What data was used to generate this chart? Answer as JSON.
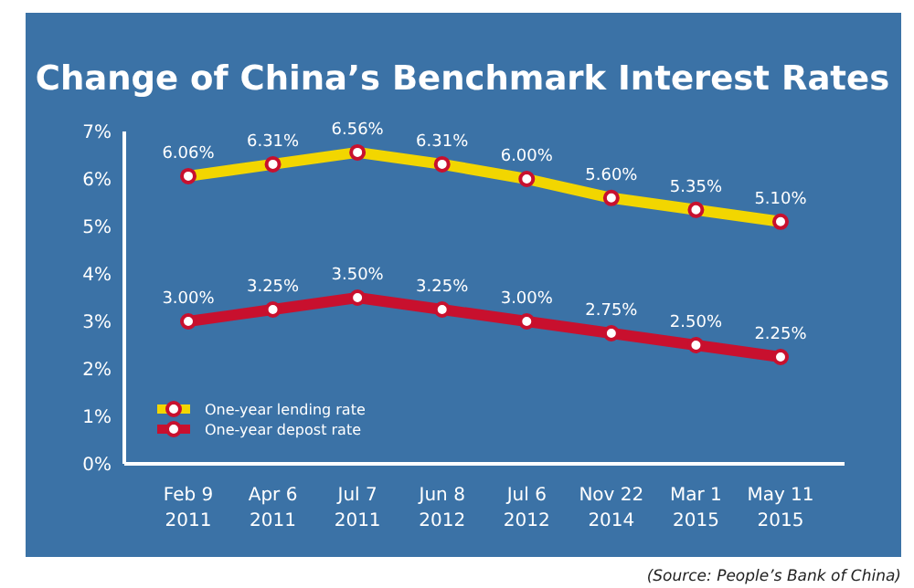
{
  "chart_data": {
    "type": "line",
    "title": "Change of China’s Benchmark Interest Rates",
    "categories": [
      "Feb 9\n2011",
      "Apr 6\n2011",
      "Jul 7\n2011",
      "Jun 8\n2012",
      "Jul 6\n2012",
      "Nov 22\n2014",
      "Mar 1\n2015",
      "May 11\n2015"
    ],
    "series": [
      {
        "name": "One-year lending rate",
        "color": "#f2d600",
        "values": [
          6.06,
          6.31,
          6.56,
          6.31,
          6.0,
          5.6,
          5.35,
          5.1
        ],
        "value_labels": [
          "6.06%",
          "6.31%",
          "6.56%",
          "6.31%",
          "6.00%",
          "5.60%",
          "5.35%",
          "5.10%"
        ]
      },
      {
        "name": "One-year depost rate",
        "color": "#c8102e",
        "values": [
          3.0,
          3.25,
          3.5,
          3.25,
          3.0,
          2.75,
          2.5,
          2.25
        ],
        "value_labels": [
          "3.00%",
          "3.25%",
          "3.50%",
          "3.25%",
          "3.00%",
          "2.75%",
          "2.50%",
          "2.25%"
        ]
      }
    ],
    "ylim": [
      0,
      7
    ],
    "yticks": [
      {
        "value": 0,
        "label": "0%"
      },
      {
        "value": 1,
        "label": "1%"
      },
      {
        "value": 2,
        "label": "2%"
      },
      {
        "value": 3,
        "label": "3%"
      },
      {
        "value": 4,
        "label": "4%"
      },
      {
        "value": 5,
        "label": "5%"
      },
      {
        "value": 6,
        "label": "6%"
      },
      {
        "value": 7,
        "label": "7%"
      }
    ],
    "marker": "circle",
    "legend": "bottom left",
    "annotations": [
      "(Source: People’s Bank of China)"
    ]
  }
}
